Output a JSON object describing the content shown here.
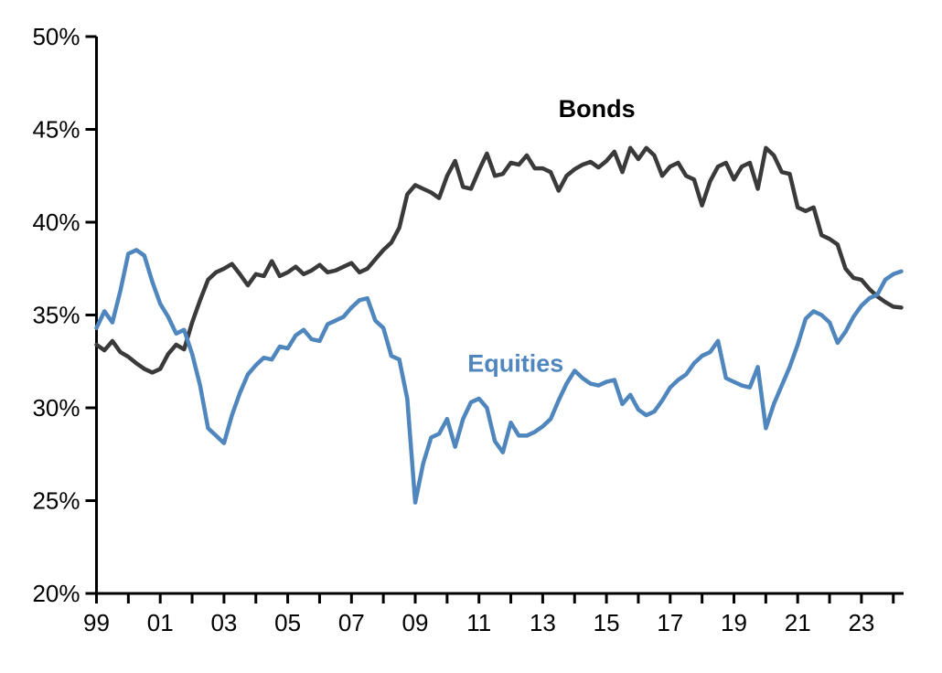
{
  "page": {
    "background": "#ffffff"
  },
  "chart_data": {
    "type": "line",
    "title": "",
    "frequency": "quarterly",
    "xlabel": "",
    "ylabel": "",
    "grid": false,
    "legend_position": "inline-labels",
    "xlim": [
      1999.0,
      2024.3
    ],
    "ylim": [
      20,
      50
    ],
    "y_ticks": [
      {
        "value": 50,
        "label": "50%"
      },
      {
        "value": 45,
        "label": "45%"
      },
      {
        "value": 40,
        "label": "40%"
      },
      {
        "value": 35,
        "label": "35%"
      },
      {
        "value": 30,
        "label": "30%"
      },
      {
        "value": 25,
        "label": "25%"
      },
      {
        "value": 20,
        "label": "20%"
      }
    ],
    "x_minor_tick_years": [
      1999,
      2000,
      2001,
      2002,
      2003,
      2004,
      2005,
      2006,
      2007,
      2008,
      2009,
      2010,
      2011,
      2012,
      2013,
      2014,
      2015,
      2016,
      2017,
      2018,
      2019,
      2020,
      2021,
      2022,
      2023,
      2024
    ],
    "x_tick_labels": [
      {
        "year": 1999,
        "label": "99"
      },
      {
        "year": 2001,
        "label": "01"
      },
      {
        "year": 2003,
        "label": "03"
      },
      {
        "year": 2005,
        "label": "05"
      },
      {
        "year": 2007,
        "label": "07"
      },
      {
        "year": 2009,
        "label": "09"
      },
      {
        "year": 2011,
        "label": "11"
      },
      {
        "year": 2013,
        "label": "13"
      },
      {
        "year": 2015,
        "label": "15"
      },
      {
        "year": 2017,
        "label": "17"
      },
      {
        "year": 2019,
        "label": "19"
      },
      {
        "year": 2021,
        "label": "21"
      },
      {
        "year": 2023,
        "label": "23"
      }
    ],
    "axis_color": "#000000",
    "x": [
      1999.0,
      1999.25,
      1999.5,
      1999.75,
      2000.0,
      2000.25,
      2000.5,
      2000.75,
      2001.0,
      2001.25,
      2001.5,
      2001.75,
      2002.0,
      2002.25,
      2002.5,
      2002.75,
      2003.0,
      2003.25,
      2003.5,
      2003.75,
      2004.0,
      2004.25,
      2004.5,
      2004.75,
      2005.0,
      2005.25,
      2005.5,
      2005.75,
      2006.0,
      2006.25,
      2006.5,
      2006.75,
      2007.0,
      2007.25,
      2007.5,
      2007.75,
      2008.0,
      2008.25,
      2008.5,
      2008.75,
      2009.0,
      2009.25,
      2009.5,
      2009.75,
      2010.0,
      2010.25,
      2010.5,
      2010.75,
      2011.0,
      2011.25,
      2011.5,
      2011.75,
      2012.0,
      2012.25,
      2012.5,
      2012.75,
      2013.0,
      2013.25,
      2013.5,
      2013.75,
      2014.0,
      2014.25,
      2014.5,
      2014.75,
      2015.0,
      2015.25,
      2015.5,
      2015.75,
      2016.0,
      2016.25,
      2016.5,
      2016.75,
      2017.0,
      2017.25,
      2017.5,
      2017.75,
      2018.0,
      2018.25,
      2018.5,
      2018.75,
      2019.0,
      2019.25,
      2019.5,
      2019.75,
      2020.0,
      2020.25,
      2020.5,
      2020.75,
      2021.0,
      2021.25,
      2021.5,
      2021.75,
      2022.0,
      2022.25,
      2022.5,
      2022.75,
      2023.0,
      2023.25,
      2023.5,
      2023.75,
      2024.0,
      2024.25
    ],
    "series": [
      {
        "name": "Bonds",
        "color": "#3a3a3a",
        "line_width": 4.5,
        "label": {
          "text": "Bonds",
          "x_year": 2014.7,
          "y_value": 46.1,
          "color": "#000000"
        },
        "values": [
          33.4,
          33.1,
          33.6,
          33.0,
          32.75,
          32.4,
          32.1,
          31.9,
          32.1,
          32.9,
          33.4,
          33.15,
          34.6,
          35.8,
          36.9,
          37.3,
          37.5,
          37.75,
          37.2,
          36.6,
          37.2,
          37.1,
          37.9,
          37.1,
          37.3,
          37.6,
          37.2,
          37.4,
          37.7,
          37.3,
          37.4,
          37.6,
          37.8,
          37.3,
          37.5,
          38.0,
          38.5,
          38.9,
          39.7,
          41.5,
          42.0,
          41.8,
          41.6,
          41.3,
          42.5,
          43.3,
          41.9,
          41.8,
          42.8,
          43.7,
          42.5,
          42.6,
          43.2,
          43.1,
          43.6,
          42.9,
          42.9,
          42.7,
          41.7,
          42.5,
          42.85,
          43.1,
          43.25,
          42.95,
          43.3,
          43.8,
          42.7,
          44.0,
          43.4,
          44.0,
          43.6,
          42.5,
          43.0,
          43.2,
          42.5,
          42.3,
          40.9,
          42.2,
          43.0,
          43.2,
          42.3,
          43.0,
          43.2,
          41.8,
          44.0,
          43.6,
          42.7,
          42.6,
          40.8,
          40.6,
          40.8,
          39.3,
          39.1,
          38.8,
          37.5,
          37.0,
          36.9,
          36.4,
          36.0,
          35.7,
          35.45,
          35.4
        ]
      },
      {
        "name": "Equities",
        "color": "#4f86be",
        "line_width": 4.5,
        "label": {
          "text": "Equities",
          "x_year": 2012.15,
          "y_value": 32.4,
          "color": "#4f86be"
        },
        "values": [
          34.3,
          35.2,
          34.6,
          36.3,
          38.3,
          38.5,
          38.2,
          36.8,
          35.6,
          34.9,
          34.0,
          34.2,
          32.9,
          31.2,
          28.9,
          28.5,
          28.1,
          29.6,
          30.8,
          31.8,
          32.3,
          32.7,
          32.6,
          33.3,
          33.2,
          33.9,
          34.2,
          33.7,
          33.6,
          34.5,
          34.7,
          34.9,
          35.4,
          35.8,
          35.9,
          34.7,
          34.3,
          32.8,
          32.6,
          30.5,
          24.9,
          27.0,
          28.4,
          28.6,
          29.4,
          27.9,
          29.4,
          30.3,
          30.5,
          30.0,
          28.2,
          27.6,
          29.2,
          28.5,
          28.5,
          28.7,
          29.0,
          29.4,
          30.4,
          31.3,
          32.0,
          31.6,
          31.3,
          31.2,
          31.4,
          31.5,
          30.2,
          30.7,
          29.9,
          29.6,
          29.8,
          30.4,
          31.1,
          31.5,
          31.8,
          32.4,
          32.8,
          33.0,
          33.6,
          31.6,
          31.4,
          31.2,
          31.1,
          32.2,
          28.9,
          30.2,
          31.2,
          32.2,
          33.4,
          34.8,
          35.2,
          35.0,
          34.6,
          33.5,
          34.1,
          34.9,
          35.5,
          35.9,
          36.1,
          36.9,
          37.2,
          37.35
        ]
      }
    ]
  }
}
